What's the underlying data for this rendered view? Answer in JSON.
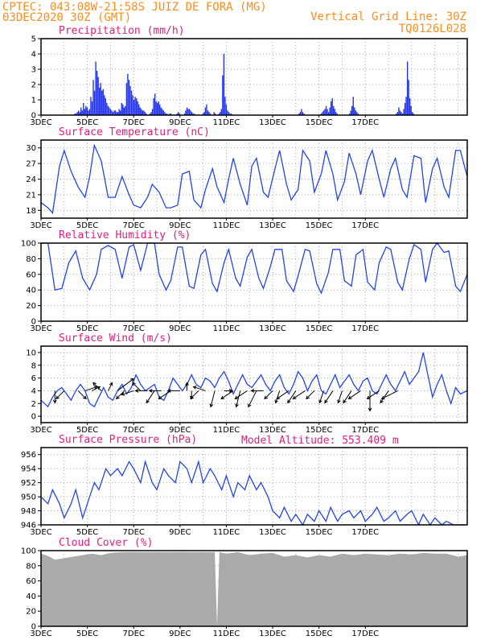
{
  "header": {
    "line1_left": "CPTEC:  043:08W-21:58S  JUIZ DE FORA (MG)",
    "line2_left": "03DEC2020 30Z (GMT)",
    "line1_right": "Vertical Grid Line: 30Z",
    "line2_right": "TQ0126L028"
  },
  "colors": {
    "header": "#ff8c1a",
    "panel_title": "#e0207a",
    "series": "#2244ee",
    "precip_bar": "#2233ee",
    "cloud_fill": "#aaaaaa",
    "wind_arrow": "#000000"
  },
  "chart_data": [
    {
      "type": "bar",
      "title": "Precipitation (mm/h)",
      "x_tick_labels": [
        "3DEC",
        "5DEC",
        "7DEC",
        "9DEC",
        "11DEC",
        "13DEC",
        "15DEC",
        "17DEC"
      ],
      "ylim": [
        0,
        5
      ],
      "y_ticks": [
        0,
        1,
        2,
        3,
        4,
        5
      ],
      "grid": true,
      "values": [
        0,
        0,
        0,
        0,
        0,
        0,
        0,
        0,
        0,
        0,
        0,
        0,
        0,
        0,
        0,
        0,
        0,
        0,
        0,
        0,
        0,
        0,
        0,
        0,
        0,
        0,
        0,
        0.1,
        0.1,
        0.2,
        0.3,
        0.2,
        0.5,
        0.3,
        0.8,
        0.4,
        0.6,
        0.5,
        0.3,
        0.4,
        1.2,
        0.9,
        2.3,
        1.6,
        3.5,
        2.9,
        2.5,
        1.8,
        2.1,
        1.6,
        1.7,
        1.3,
        1.1,
        0.8,
        0.6,
        0.5,
        0.4,
        0.3,
        0.2,
        0.3,
        0.3,
        0.2,
        0.2,
        0.4,
        0.3,
        0.8,
        0.7,
        0.5,
        0.6,
        2.1,
        2.7,
        2.3,
        1.9,
        1.6,
        1.3,
        1.0,
        1.2,
        1.1,
        0.9,
        0.7,
        0.5,
        0.4,
        0.3,
        0.3,
        0.2,
        0.1,
        0,
        0,
        0.1,
        0.2,
        0.4,
        1.1,
        1.4,
        0.9,
        0.8,
        0.9,
        0.7,
        0.5,
        0.4,
        0.3,
        0.2,
        0.1,
        0.1,
        0,
        0.1,
        0.1,
        0,
        0,
        0,
        0,
        0.1,
        0.2,
        0.1,
        0,
        0,
        0,
        0.1,
        0.3,
        0.5,
        0.4,
        0.4,
        0.3,
        0.2,
        0.1,
        0.1,
        0,
        0,
        0,
        0,
        0,
        0,
        0.1,
        0.2,
        0.5,
        0.7,
        0.3,
        0.2,
        0.1,
        0,
        0,
        0.2,
        0.1,
        0,
        0,
        0.1,
        0.2,
        0.4,
        2.6,
        4,
        1.2,
        0.7,
        0.3,
        0.2,
        0.1,
        0.1,
        0,
        0,
        0,
        0,
        0,
        0,
        0,
        0,
        0,
        0,
        0,
        0,
        0,
        0,
        0,
        0,
        0,
        0,
        0,
        0,
        0,
        0,
        0,
        0,
        0,
        0,
        0,
        0,
        0,
        0,
        0,
        0,
        0,
        0,
        0,
        0,
        0,
        0,
        0,
        0,
        0,
        0,
        0,
        0,
        0,
        0,
        0,
        0,
        0,
        0,
        0,
        0,
        0,
        0,
        0.1,
        0.2,
        0.4,
        0.2,
        0.1,
        0,
        0,
        0,
        0,
        0,
        0,
        0,
        0,
        0,
        0,
        0,
        0,
        0,
        0.1,
        0.2,
        0.3,
        0.4,
        0.6,
        0.4,
        0.2,
        0.5,
        0.9,
        1.1,
        0.6,
        0.4,
        0.2,
        0.1,
        0,
        0,
        0,
        0,
        0,
        0,
        0,
        0,
        0,
        0.1,
        0.3,
        0.6,
        1.2,
        0.5,
        0.3,
        0.2,
        0.1,
        0,
        0,
        0,
        0,
        0,
        0,
        0,
        0,
        0,
        0,
        0,
        0,
        0,
        0,
        0,
        0,
        0,
        0,
        0,
        0,
        0,
        0,
        0,
        0,
        0,
        0,
        0,
        0,
        0,
        0,
        0.1,
        0.2,
        0.5,
        0.3,
        0.2,
        0.1,
        0.4,
        0.8,
        1.2,
        3.5,
        2.3,
        1.1,
        0.6,
        0.2,
        0.1,
        0,
        0,
        0,
        0,
        0,
        0,
        0,
        0,
        0,
        0,
        0,
        0,
        0,
        0,
        0,
        0,
        0,
        0,
        0,
        0,
        0,
        0,
        0,
        0,
        0,
        0,
        0,
        0,
        0,
        0,
        0,
        0,
        0,
        0,
        0,
        0,
        0,
        0,
        0,
        0,
        0,
        0,
        0
      ]
    },
    {
      "type": "line",
      "title": "Surface Temperature (nC)",
      "x_tick_labels": [
        "3DEC",
        "5DEC",
        "7DEC",
        "9DEC",
        "11DEC",
        "13DEC",
        "15DEC",
        "17DEC"
      ],
      "ylim": [
        16.5,
        31.5
      ],
      "y_ticks": [
        18,
        21,
        24,
        27,
        30
      ],
      "grid": true,
      "x_days": [
        0,
        0.3,
        0.5,
        0.8,
        1.0,
        1.3,
        1.6,
        1.9,
        2.1,
        2.3,
        2.6,
        2.9,
        3.2,
        3.5,
        3.8,
        4.0,
        4.3,
        4.6,
        4.8,
        5.1,
        5.4,
        5.6,
        5.9,
        6.1,
        6.4,
        6.6,
        6.9,
        7.1,
        7.4,
        7.6,
        7.9,
        8.1,
        8.3,
        8.6,
        8.9,
        9.1,
        9.3,
        9.6,
        9.8,
        10.1,
        10.3,
        10.6,
        10.8,
        11.1,
        11.3,
        11.6,
        11.8,
        12.1,
        12.3,
        12.6,
        12.8,
        13.1,
        13.3,
        13.6,
        13.8,
        14.1,
        14.3,
        14.6,
        14.8,
        15.1,
        15.3,
        15.6,
        15.8,
        16.1,
        16.4,
        16.6,
        16.9,
        17.1,
        17.4,
        17.6,
        17.9,
        18.1,
        18.4
      ],
      "y": [
        19.5,
        18.5,
        17.5,
        26.5,
        29.5,
        25.5,
        22.5,
        20.5,
        24.5,
        30.5,
        27.5,
        20.5,
        20.5,
        24.5,
        21,
        19,
        18.5,
        20.5,
        23,
        21.5,
        18.5,
        18.5,
        19,
        25,
        25.5,
        20,
        18.5,
        22,
        26,
        22.5,
        19.5,
        24,
        28,
        23,
        19,
        26.5,
        28,
        21.5,
        20.5,
        26,
        29.5,
        23,
        20,
        22,
        29.5,
        27.5,
        21.5,
        25,
        29.5,
        25,
        20,
        23.5,
        29,
        25,
        21,
        27.5,
        29.5,
        24,
        20.5,
        26,
        28,
        22,
        20.5,
        28.5,
        28,
        19.5,
        26,
        28,
        22.5,
        20.5,
        29.5,
        29.5,
        24.5
      ]
    },
    {
      "type": "line",
      "title": "Relative Humidity (%)",
      "x_tick_labels": [
        "3DEC",
        "5DEC",
        "7DEC",
        "9DEC",
        "11DEC",
        "13DEC",
        "15DEC",
        "17DEC"
      ],
      "ylim": [
        0,
        100
      ],
      "y_ticks": [
        0,
        20,
        40,
        60,
        80,
        100
      ],
      "grid": true,
      "x_days": [
        0,
        0.3,
        0.6,
        0.9,
        1.2,
        1.5,
        1.8,
        2.1,
        2.4,
        2.6,
        2.9,
        3.2,
        3.5,
        3.8,
        4.0,
        4.3,
        4.6,
        4.9,
        5.1,
        5.4,
        5.6,
        5.9,
        6.1,
        6.4,
        6.6,
        6.9,
        7.1,
        7.4,
        7.6,
        7.9,
        8.1,
        8.4,
        8.6,
        8.9,
        9.1,
        9.4,
        9.6,
        9.9,
        10.1,
        10.4,
        10.6,
        10.9,
        11.1,
        11.4,
        11.6,
        11.9,
        12.1,
        12.4,
        12.6,
        12.9,
        13.1,
        13.4,
        13.6,
        13.9,
        14.1,
        14.4,
        14.6,
        14.9,
        15.1,
        15.4,
        15.6,
        15.9,
        16.1,
        16.4,
        16.6,
        16.9,
        17.1,
        17.4,
        17.6,
        17.9,
        18.1,
        18.4
      ],
      "y": [
        100,
        100,
        40,
        42,
        75,
        90,
        55,
        40,
        60,
        92,
        97,
        92,
        55,
        95,
        98,
        65,
        100,
        100,
        60,
        40,
        52,
        95,
        95,
        45,
        42,
        85,
        92,
        48,
        38,
        75,
        92,
        55,
        45,
        82,
        92,
        55,
        42,
        70,
        92,
        92,
        52,
        38,
        58,
        92,
        90,
        48,
        36,
        62,
        92,
        92,
        52,
        45,
        85,
        92,
        50,
        40,
        75,
        95,
        92,
        50,
        40,
        80,
        98,
        92,
        50,
        92,
        100,
        88,
        90,
        45,
        38,
        60
      ]
    },
    {
      "type": "line",
      "title": "Surface Wind (m/s)",
      "x_tick_labels": [
        "3DEC",
        "5DEC",
        "7DEC",
        "9DEC",
        "11DEC",
        "13DEC",
        "15DEC",
        "17DEC"
      ],
      "ylim": [
        -1,
        11
      ],
      "y_ticks": [
        0,
        2,
        4,
        6,
        8,
        10
      ],
      "grid": true,
      "x_days": [
        0,
        0.3,
        0.5,
        0.7,
        0.9,
        1.1,
        1.3,
        1.5,
        1.7,
        1.9,
        2.1,
        2.3,
        2.5,
        2.7,
        2.9,
        3.1,
        3.3,
        3.5,
        3.7,
        3.9,
        4.1,
        4.3,
        4.5,
        4.7,
        4.9,
        5.1,
        5.3,
        5.5,
        5.7,
        5.9,
        6.1,
        6.3,
        6.5,
        6.7,
        6.9,
        7.1,
        7.3,
        7.5,
        7.7,
        7.9,
        8.1,
        8.3,
        8.5,
        8.7,
        8.9,
        9.1,
        9.3,
        9.5,
        9.7,
        9.9,
        10.1,
        10.3,
        10.5,
        10.7,
        10.9,
        11.1,
        11.3,
        11.5,
        11.7,
        11.9,
        12.1,
        12.3,
        12.5,
        12.7,
        12.9,
        13.1,
        13.3,
        13.5,
        13.7,
        13.9,
        14.1,
        14.3,
        14.5,
        14.7,
        14.9,
        15.1,
        15.3,
        15.5,
        15.7,
        15.9,
        16.1,
        16.3,
        16.5,
        16.7,
        16.9,
        17.1,
        17.3,
        17.5,
        17.7,
        17.9,
        18.1,
        18.4
      ],
      "y": [
        2.5,
        1.5,
        3,
        4,
        4.5,
        3.5,
        2.5,
        4,
        5,
        4,
        2,
        1.5,
        3,
        4.5,
        3,
        2.5,
        4,
        5,
        3.5,
        4.5,
        6.5,
        5,
        4,
        4.5,
        5,
        3,
        2.5,
        4,
        6,
        5,
        4,
        5,
        6.5,
        5,
        4.5,
        6,
        5.5,
        4.5,
        6,
        7,
        5.5,
        3.5,
        5,
        6.5,
        5,
        4.5,
        5.5,
        6.5,
        5,
        4,
        5.5,
        6.5,
        4.5,
        3.5,
        5,
        7,
        6,
        4,
        5.5,
        6.5,
        4,
        3.5,
        5,
        6.5,
        4.5,
        5.5,
        6.5,
        5,
        4,
        5.5,
        6,
        4,
        3.5,
        5,
        6.5,
        5,
        4,
        5.5,
        7,
        5,
        6,
        7,
        10,
        6.5,
        3,
        5,
        6.5,
        4,
        2,
        4.5,
        3.5,
        4
      ],
      "arrows": [
        {
          "day": 0.6,
          "u": 0,
          "v": -3
        },
        {
          "day": 1.0,
          "u": -2,
          "v": -2
        },
        {
          "day": 1.6,
          "u": 2,
          "v": -2
        },
        {
          "day": 1.9,
          "u": 3,
          "v": 1
        },
        {
          "day": 2.2,
          "u": 2,
          "v": 1
        },
        {
          "day": 2.6,
          "u": -2,
          "v": 2
        },
        {
          "day": 2.9,
          "u": 1,
          "v": 2
        },
        {
          "day": 3.3,
          "u": 4,
          "v": 3
        },
        {
          "day": 3.6,
          "u": -2,
          "v": -2
        },
        {
          "day": 4.0,
          "u": -3,
          "v": -1
        },
        {
          "day": 4.3,
          "u": -2,
          "v": 2
        },
        {
          "day": 4.6,
          "u": -3,
          "v": 0
        },
        {
          "day": 4.9,
          "u": -2,
          "v": -3
        },
        {
          "day": 5.2,
          "u": -3,
          "v": 0
        },
        {
          "day": 5.6,
          "u": -3,
          "v": -2
        },
        {
          "day": 6.0,
          "u": -3,
          "v": 0
        },
        {
          "day": 6.3,
          "u": 0,
          "v": 2
        },
        {
          "day": 6.5,
          "u": 0,
          "v": -2
        },
        {
          "day": 6.8,
          "u": -2,
          "v": -2
        },
        {
          "day": 7.1,
          "u": -3,
          "v": 1
        },
        {
          "day": 7.5,
          "u": -1,
          "v": -4
        },
        {
          "day": 7.9,
          "u": 2,
          "v": 0
        },
        {
          "day": 8.3,
          "u": -3,
          "v": -2
        },
        {
          "day": 8.6,
          "u": -1,
          "v": -4
        },
        {
          "day": 8.9,
          "u": -3,
          "v": -2
        },
        {
          "day": 9.3,
          "u": -2,
          "v": -4
        },
        {
          "day": 9.6,
          "u": -3,
          "v": 0
        },
        {
          "day": 10.0,
          "u": -2,
          "v": -2
        },
        {
          "day": 10.3,
          "u": -1,
          "v": -3
        },
        {
          "day": 10.7,
          "u": -3,
          "v": -2
        },
        {
          "day": 11.0,
          "u": -2,
          "v": -3
        },
        {
          "day": 11.4,
          "u": -3,
          "v": -2
        },
        {
          "day": 11.8,
          "u": -2,
          "v": -2
        },
        {
          "day": 12.2,
          "u": -1,
          "v": -3
        },
        {
          "day": 12.6,
          "u": -2,
          "v": -3
        },
        {
          "day": 13.0,
          "u": -1,
          "v": -3
        },
        {
          "day": 13.4,
          "u": -2,
          "v": -3
        },
        {
          "day": 13.8,
          "u": -3,
          "v": -2
        },
        {
          "day": 14.2,
          "u": 0,
          "v": -5
        },
        {
          "day": 14.6,
          "u": -3,
          "v": -2
        },
        {
          "day": 15.0,
          "u": -2,
          "v": -3
        },
        {
          "day": 15.4,
          "u": -4,
          "v": -2
        }
      ]
    },
    {
      "type": "line",
      "title": "Surface Pressure (hPa)",
      "annotation": "Model Altitude: 553.409 m",
      "x_tick_labels": [
        "3DEC",
        "5DEC",
        "7DEC",
        "9DEC",
        "11DEC",
        "13DEC",
        "15DEC",
        "17DEC"
      ],
      "ylim": [
        946,
        957
      ],
      "y_ticks": [
        946,
        948,
        950,
        952,
        954,
        956
      ],
      "grid": true,
      "x_days": [
        0,
        0.3,
        0.5,
        0.8,
        1.0,
        1.3,
        1.5,
        1.8,
        2.0,
        2.3,
        2.5,
        2.8,
        3.0,
        3.3,
        3.5,
        3.8,
        4.0,
        4.3,
        4.5,
        4.8,
        5.0,
        5.3,
        5.5,
        5.8,
        6.0,
        6.3,
        6.5,
        6.8,
        7.0,
        7.3,
        7.5,
        7.8,
        8.0,
        8.3,
        8.5,
        8.8,
        9.0,
        9.3,
        9.5,
        9.8,
        10.0,
        10.3,
        10.5,
        10.8,
        11.0,
        11.3,
        11.5,
        11.8,
        12.0,
        12.3,
        12.5,
        12.8,
        13.0,
        13.3,
        13.5,
        13.8,
        14.0,
        14.3,
        14.5,
        14.8,
        15.0,
        15.3,
        15.5,
        15.8,
        16.0,
        16.3,
        16.5,
        16.8,
        17.0,
        17.3,
        17.5,
        17.8,
        18.0,
        18.3
      ],
      "y": [
        950,
        949,
        951,
        949,
        947,
        949,
        951,
        947,
        949,
        952,
        951,
        954,
        953,
        954,
        953,
        955,
        954,
        952,
        955,
        952,
        951,
        954,
        953,
        952,
        955,
        954,
        952,
        955,
        952,
        954,
        953,
        951,
        953,
        950,
        952,
        951,
        953,
        951,
        952,
        950,
        948,
        947,
        948.5,
        946.5,
        947.5,
        946,
        947.5,
        946.5,
        948,
        946.5,
        948.5,
        946.5,
        947.5,
        948,
        947,
        948,
        946.5,
        947.5,
        948.5,
        946.5,
        947,
        948,
        946.5,
        947.5,
        948,
        946,
        947.5,
        946,
        947,
        946,
        946.5,
        946,
        946,
        946
      ]
    },
    {
      "type": "area",
      "title": "Cloud Cover (%)",
      "x_tick_labels": [
        "3DEC",
        "5DEC",
        "7DEC",
        "9DEC",
        "11DEC",
        "13DEC",
        "15DEC",
        "17DEC"
      ],
      "ylim": [
        0,
        100
      ],
      "y_ticks": [
        0,
        20,
        40,
        60,
        80,
        100
      ],
      "grid": true,
      "x_days": [
        0,
        0.3,
        0.6,
        1.0,
        1.4,
        1.8,
        2.2,
        2.6,
        3.0,
        3.5,
        4.0,
        4.5,
        5.0,
        5.5,
        6.0,
        6.5,
        7.0,
        7.5,
        7.6,
        7.7,
        8.0,
        8.5,
        9.0,
        9.5,
        10.0,
        10.5,
        11.0,
        11.5,
        12.0,
        12.5,
        13.0,
        13.5,
        14.0,
        14.5,
        15.0,
        15.5,
        16.0,
        16.5,
        17.0,
        17.5,
        18.0,
        18.4
      ],
      "y": [
        96,
        93,
        88,
        90,
        92,
        94,
        96,
        94,
        97,
        98,
        98,
        98,
        98,
        98,
        98,
        98,
        98,
        98,
        0,
        98,
        96,
        98,
        94,
        96,
        97,
        92,
        94,
        91,
        94,
        92,
        96,
        94,
        96,
        95,
        94,
        96,
        95,
        97,
        96,
        96,
        92,
        94
      ]
    }
  ]
}
